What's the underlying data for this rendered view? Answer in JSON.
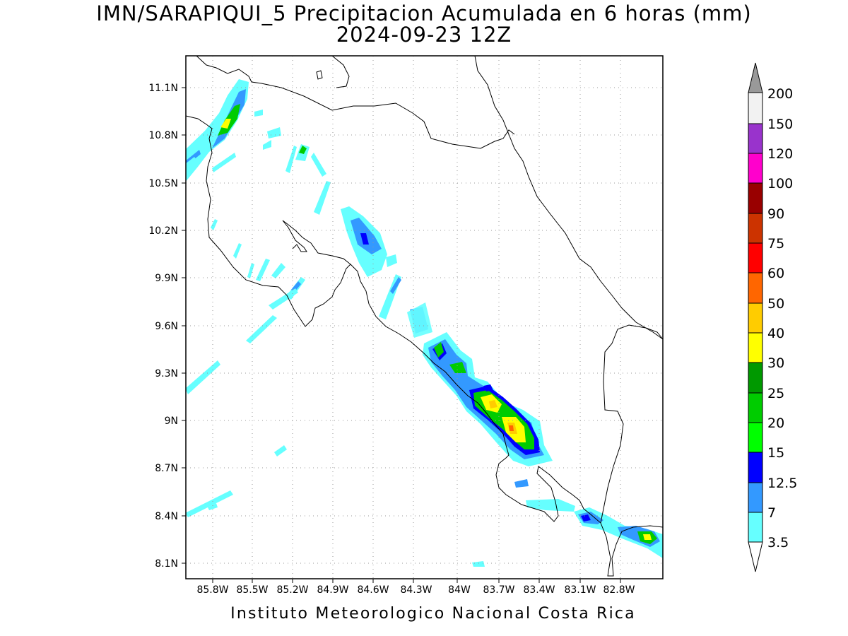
{
  "title": {
    "line1": "IMN/SARAPIQUI_5 Precipitacion Acumulada en 6 horas (mm)",
    "line2": "2024-09-23 12Z"
  },
  "credit": "Instituto Meteorologico Nacional Costa Rica",
  "map": {
    "lon_range": [
      -86.05,
      -82.65
    ],
    "lat_range": [
      8.0,
      11.3
    ],
    "lon_ticks": [
      "85.8W",
      "85.5W",
      "85.2W",
      "84.9W",
      "84.6W",
      "84.3W",
      "84W",
      "83.7W",
      "83.4W",
      "83.1W",
      "82.8W"
    ],
    "lat_ticks": [
      "11.1N",
      "10.8N",
      "10.5N",
      "10.2N",
      "9.9N",
      "9.6N",
      "9.3N",
      "9N",
      "8.7N",
      "8.4N",
      "8.1N"
    ],
    "grid": "dotted"
  },
  "colorbar": {
    "labels": [
      "3.5",
      "7",
      "12.5",
      "15",
      "20",
      "25",
      "30",
      "40",
      "50",
      "60",
      "75",
      "90",
      "100",
      "120",
      "150",
      "200"
    ],
    "colors": [
      "#ffffff",
      "#66ffff",
      "#3399ff",
      "#0000ff",
      "#00ff00",
      "#00cc00",
      "#009900",
      "#ffff00",
      "#ffcc00",
      "#ff6600",
      "#ff0000",
      "#cc3300",
      "#990000",
      "#ff00cc",
      "#9933cc",
      "#f2f2f2",
      "#999999"
    ]
  }
}
